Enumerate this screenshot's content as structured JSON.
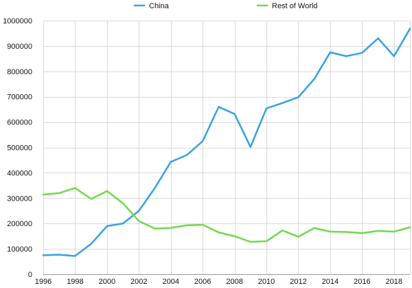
{
  "chart_data": {
    "type": "line",
    "title": "",
    "xlabel": "",
    "ylabel": "",
    "x": [
      1996,
      1997,
      1998,
      1999,
      2000,
      2001,
      2002,
      2003,
      2004,
      2005,
      2006,
      2007,
      2008,
      2009,
      2010,
      2011,
      2012,
      2013,
      2014,
      2015,
      2016,
      2017,
      2018,
      2019
    ],
    "xlim": [
      1996,
      2019
    ],
    "ylim": [
      0,
      1000000
    ],
    "x_ticks": [
      1996,
      1998,
      2000,
      2002,
      2004,
      2006,
      2008,
      2010,
      2012,
      2014,
      2016,
      2018
    ],
    "x_tick_labels": [
      "1996",
      "1998",
      "2000",
      "2002",
      "2004",
      "2006",
      "2008",
      "2010",
      "2012",
      "2014",
      "2016",
      "2018"
    ],
    "y_ticks": [
      0,
      100000,
      200000,
      300000,
      400000,
      500000,
      600000,
      700000,
      800000,
      900000,
      1000000
    ],
    "y_tick_labels": [
      "0",
      "100000",
      "200000",
      "300000",
      "400000",
      "500000",
      "600000",
      "700000",
      "800000",
      "900000",
      "1000000"
    ],
    "grid": true,
    "legend_position": "top",
    "series": [
      {
        "name": "China",
        "color": "#3aa3e3",
        "values": [
          75000,
          77000,
          72000,
          120000,
          190000,
          200000,
          250000,
          340000,
          443000,
          470000,
          525000,
          660000,
          632000,
          502000,
          654000,
          675000,
          698000,
          770000,
          875000,
          860000,
          873000,
          930000,
          860000,
          968000
        ]
      },
      {
        "name": "Rest of World",
        "color": "#72da4d",
        "values": [
          314000,
          320000,
          340000,
          297000,
          328000,
          280000,
          210000,
          180000,
          183000,
          193000,
          195000,
          165000,
          150000,
          128000,
          130000,
          173000,
          148000,
          182000,
          168000,
          167000,
          162000,
          171000,
          168000,
          185000
        ]
      }
    ]
  }
}
